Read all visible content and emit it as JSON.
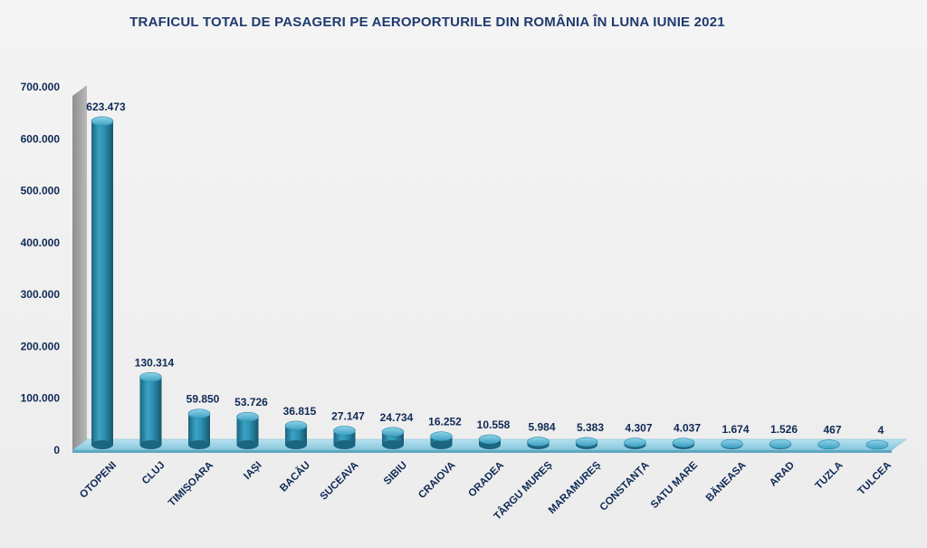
{
  "chart_data": {
    "type": "bar",
    "title": "TRAFICUL TOTAL DE PASAGERI PE AEROPORTURILE DIN ROMÂNIA ÎN LUNA IUNIE 2021",
    "xlabel": "",
    "ylabel": "",
    "ylim": [
      0,
      700000
    ],
    "y_ticks": [
      "0",
      "100.000",
      "200.000",
      "300.000",
      "400.000",
      "500.000",
      "600.000",
      "700.000"
    ],
    "y_tick_values": [
      0,
      100000,
      200000,
      300000,
      400000,
      500000,
      600000,
      700000
    ],
    "grid": false,
    "legend": "none",
    "categories": [
      "OTOPENI",
      "CLUJ",
      "TIMIȘOARA",
      "IAȘI",
      "BACĂU",
      "SUCEAVA",
      "SIBIU",
      "CRAIOVA",
      "ORADEA",
      "TÂRGU MUREȘ",
      "MARAMUREȘ",
      "CONSTANȚA",
      "SATU MARE",
      "BĂNEASA",
      "ARAD",
      "TUZLA",
      "TULCEA"
    ],
    "values": [
      623473,
      130314,
      59850,
      53726,
      36815,
      27147,
      24734,
      16252,
      10558,
      5984,
      5383,
      4307,
      4037,
      1674,
      1526,
      467,
      4
    ],
    "value_labels": [
      "623.473",
      "130.314",
      "59.850",
      "53.726",
      "36.815",
      "27.147",
      "24.734",
      "16.252",
      "10.558",
      "5.984",
      "5.383",
      "4.307",
      "4.037",
      "1.674",
      "1.526",
      "467",
      "4"
    ],
    "colors": {
      "bar": "#2e8fb0",
      "bar_dark": "#1c6580",
      "bar_light": "#62bcd8",
      "wall": "#a8a8a8",
      "floor": "#9fd3e6",
      "label_text": "#0f2a55",
      "title_text": "#1f3a6e"
    }
  }
}
